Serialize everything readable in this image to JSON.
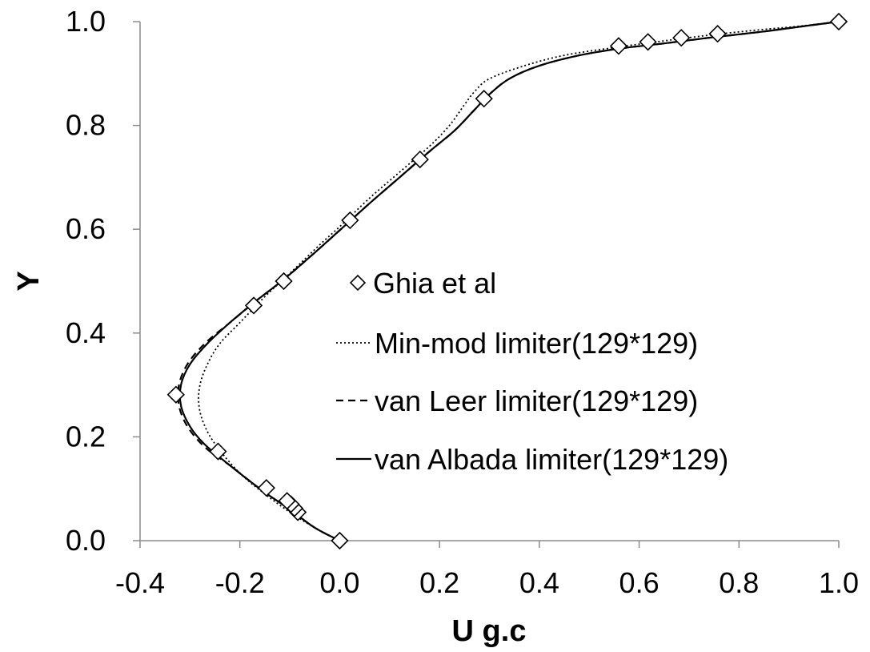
{
  "chart_data": {
    "type": "line",
    "title": "",
    "xlabel": "U g.c",
    "ylabel": "Y",
    "xlim": [
      -0.4,
      1.0
    ],
    "ylim": [
      0.0,
      1.0
    ],
    "x_ticks": [
      "-0.4",
      "-0.2",
      "0.0",
      "0.2",
      "0.4",
      "0.6",
      "0.8",
      "1.0"
    ],
    "y_ticks": [
      "0.0",
      "0.2",
      "0.4",
      "0.6",
      "0.8",
      "1.0"
    ],
    "grid": false,
    "legend_position": "center-right",
    "series": [
      {
        "name": "Ghia et al",
        "style": "diamond-markers",
        "color": "#000000",
        "points": [
          {
            "x": 0.0,
            "y": 0.0
          },
          {
            "x": -0.0839,
            "y": 0.0547
          },
          {
            "x": -0.0906,
            "y": 0.0625
          },
          {
            "x": -0.0977,
            "y": 0.0703
          },
          {
            "x": -0.1056,
            "y": 0.0766
          },
          {
            "x": -0.1469,
            "y": 0.1016
          },
          {
            "x": -0.2438,
            "y": 0.1719
          },
          {
            "x": -0.3281,
            "y": 0.2813
          },
          {
            "x": -0.1722,
            "y": 0.4531
          },
          {
            "x": -0.1121,
            "y": 0.5
          },
          {
            "x": 0.0207,
            "y": 0.6172
          },
          {
            "x": 0.1609,
            "y": 0.7344
          },
          {
            "x": 0.2891,
            "y": 0.8516
          },
          {
            "x": 0.5589,
            "y": 0.9531
          },
          {
            "x": 0.6176,
            "y": 0.9609
          },
          {
            "x": 0.6844,
            "y": 0.9688
          },
          {
            "x": 0.7572,
            "y": 0.9766
          },
          {
            "x": 1.0,
            "y": 1.0
          }
        ]
      },
      {
        "name": "Min-mod limiter(129*129)",
        "style": "dotted",
        "color": "#000000",
        "points": [
          {
            "x": 0.0,
            "y": 0.0
          },
          {
            "x": -0.05,
            "y": 0.025
          },
          {
            "x": -0.1,
            "y": 0.055
          },
          {
            "x": -0.15,
            "y": 0.09
          },
          {
            "x": -0.2,
            "y": 0.13
          },
          {
            "x": -0.245,
            "y": 0.18
          },
          {
            "x": -0.27,
            "y": 0.22
          },
          {
            "x": -0.282,
            "y": 0.26
          },
          {
            "x": -0.28,
            "y": 0.3
          },
          {
            "x": -0.265,
            "y": 0.34
          },
          {
            "x": -0.24,
            "y": 0.38
          },
          {
            "x": -0.2,
            "y": 0.42
          },
          {
            "x": -0.15,
            "y": 0.47
          },
          {
            "x": -0.1,
            "y": 0.515
          },
          {
            "x": -0.04,
            "y": 0.57
          },
          {
            "x": 0.0,
            "y": 0.605
          },
          {
            "x": 0.06,
            "y": 0.66
          },
          {
            "x": 0.12,
            "y": 0.71
          },
          {
            "x": 0.18,
            "y": 0.76
          },
          {
            "x": 0.22,
            "y": 0.8
          },
          {
            "x": 0.25,
            "y": 0.84
          },
          {
            "x": 0.27,
            "y": 0.865
          },
          {
            "x": 0.3,
            "y": 0.89
          },
          {
            "x": 0.37,
            "y": 0.915
          },
          {
            "x": 0.45,
            "y": 0.935
          },
          {
            "x": 0.55,
            "y": 0.95
          },
          {
            "x": 0.65,
            "y": 0.963
          },
          {
            "x": 0.75,
            "y": 0.975
          },
          {
            "x": 0.85,
            "y": 0.985
          },
          {
            "x": 0.92,
            "y": 0.991
          },
          {
            "x": 1.0,
            "y": 1.0
          }
        ]
      },
      {
        "name": "van Leer limiter(129*129)",
        "style": "dashed",
        "color": "#000000",
        "points": [
          {
            "x": 0.0,
            "y": 0.0
          },
          {
            "x": -0.05,
            "y": 0.025
          },
          {
            "x": -0.1,
            "y": 0.06
          },
          {
            "x": -0.16,
            "y": 0.1
          },
          {
            "x": -0.22,
            "y": 0.145
          },
          {
            "x": -0.27,
            "y": 0.18
          },
          {
            "x": -0.305,
            "y": 0.22
          },
          {
            "x": -0.322,
            "y": 0.26
          },
          {
            "x": -0.322,
            "y": 0.3
          },
          {
            "x": -0.305,
            "y": 0.34
          },
          {
            "x": -0.27,
            "y": 0.38
          },
          {
            "x": -0.22,
            "y": 0.42
          },
          {
            "x": -0.17,
            "y": 0.46
          },
          {
            "x": -0.11,
            "y": 0.505
          },
          {
            "x": -0.05,
            "y": 0.555
          },
          {
            "x": 0.0,
            "y": 0.598
          },
          {
            "x": 0.06,
            "y": 0.65
          },
          {
            "x": 0.12,
            "y": 0.7
          },
          {
            "x": 0.18,
            "y": 0.75
          },
          {
            "x": 0.23,
            "y": 0.79
          },
          {
            "x": 0.27,
            "y": 0.83
          },
          {
            "x": 0.3,
            "y": 0.86
          },
          {
            "x": 0.34,
            "y": 0.89
          },
          {
            "x": 0.4,
            "y": 0.915
          },
          {
            "x": 0.48,
            "y": 0.935
          },
          {
            "x": 0.56,
            "y": 0.948
          },
          {
            "x": 0.65,
            "y": 0.958
          },
          {
            "x": 0.75,
            "y": 0.97
          },
          {
            "x": 0.85,
            "y": 0.981
          },
          {
            "x": 0.92,
            "y": 0.99
          },
          {
            "x": 1.0,
            "y": 1.0
          }
        ]
      },
      {
        "name": "van Albada limiter(129*129)",
        "style": "solid",
        "color": "#000000",
        "points": [
          {
            "x": 0.0,
            "y": 0.0
          },
          {
            "x": -0.05,
            "y": 0.025
          },
          {
            "x": -0.1,
            "y": 0.06
          },
          {
            "x": -0.16,
            "y": 0.1
          },
          {
            "x": -0.22,
            "y": 0.145
          },
          {
            "x": -0.27,
            "y": 0.185
          },
          {
            "x": -0.3,
            "y": 0.22
          },
          {
            "x": -0.318,
            "y": 0.26
          },
          {
            "x": -0.318,
            "y": 0.3
          },
          {
            "x": -0.3,
            "y": 0.34
          },
          {
            "x": -0.265,
            "y": 0.38
          },
          {
            "x": -0.22,
            "y": 0.42
          },
          {
            "x": -0.17,
            "y": 0.46
          },
          {
            "x": -0.11,
            "y": 0.505
          },
          {
            "x": -0.05,
            "y": 0.555
          },
          {
            "x": 0.0,
            "y": 0.598
          },
          {
            "x": 0.06,
            "y": 0.65
          },
          {
            "x": 0.12,
            "y": 0.7
          },
          {
            "x": 0.18,
            "y": 0.75
          },
          {
            "x": 0.23,
            "y": 0.79
          },
          {
            "x": 0.27,
            "y": 0.83
          },
          {
            "x": 0.3,
            "y": 0.86
          },
          {
            "x": 0.34,
            "y": 0.89
          },
          {
            "x": 0.4,
            "y": 0.915
          },
          {
            "x": 0.48,
            "y": 0.935
          },
          {
            "x": 0.56,
            "y": 0.948
          },
          {
            "x": 0.65,
            "y": 0.958
          },
          {
            "x": 0.75,
            "y": 0.97
          },
          {
            "x": 0.85,
            "y": 0.981
          },
          {
            "x": 0.92,
            "y": 0.99
          },
          {
            "x": 1.0,
            "y": 1.0
          }
        ]
      }
    ]
  }
}
